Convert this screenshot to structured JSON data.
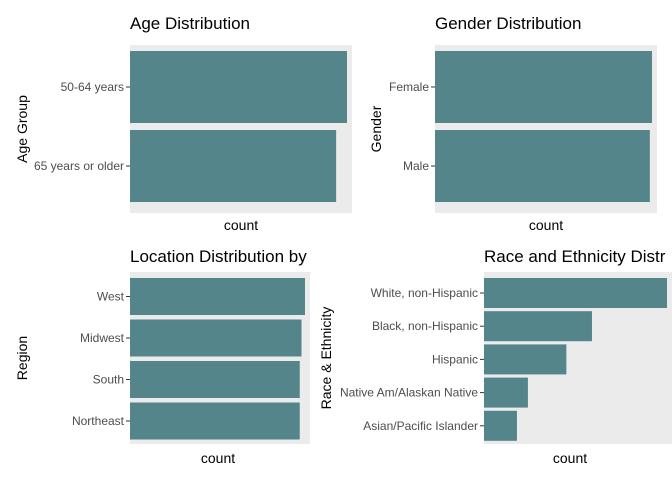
{
  "chart_data": [
    {
      "type": "bar",
      "orientation": "horizontal",
      "title": "Age Distribution",
      "xlabel": "count",
      "ylabel": "Age Group",
      "categories": [
        "50-64 years",
        "65 years or older"
      ],
      "values": [
        1.0,
        0.95
      ]
    },
    {
      "type": "bar",
      "orientation": "horizontal",
      "title": "Gender Distribution",
      "xlabel": "count",
      "ylabel": "Gender",
      "categories": [
        "Female",
        "Male"
      ],
      "values": [
        1.0,
        0.99
      ]
    },
    {
      "type": "bar",
      "orientation": "horizontal",
      "title": "Location Distribution by",
      "xlabel": "count",
      "ylabel": "Region",
      "categories": [
        "West",
        "Midwest",
        "South",
        "Northeast"
      ],
      "values": [
        1.0,
        0.98,
        0.97,
        0.97
      ]
    },
    {
      "type": "bar",
      "orientation": "horizontal",
      "title": "Race and Ethnicity Distr",
      "xlabel": "count",
      "ylabel": "Race & Ethnicity",
      "categories": [
        "White, non-Hispanic",
        "Black, non-Hispanic",
        "Hispanic",
        "Native Am/Alaskan Native",
        "Asian/Pacific Islander"
      ],
      "values": [
        1.0,
        0.59,
        0.45,
        0.24,
        0.18
      ]
    }
  ],
  "colors": {
    "bar": "#53858a",
    "panel": "#ebebeb"
  }
}
